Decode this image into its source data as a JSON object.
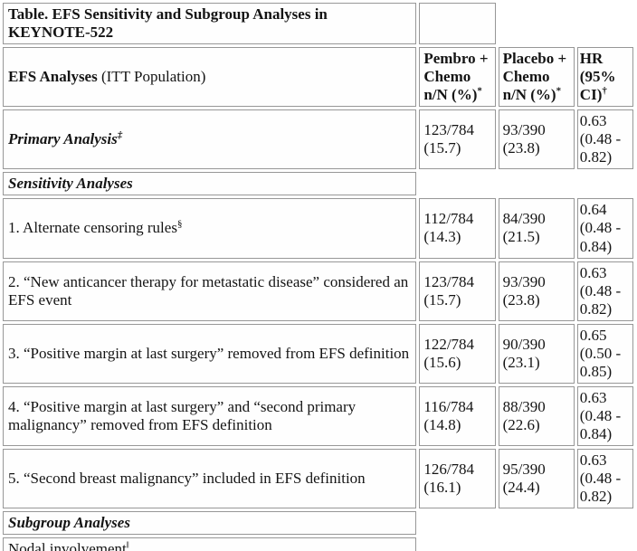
{
  "title": {
    "text": "Table. EFS Sensitivity and Subgroup Analyses in KEYNOTE-522"
  },
  "columns": {
    "analysis_bold": "EFS Analyses",
    "analysis_rest": " (ITT Population)",
    "pembro": "Pembro + Chemo n/N (%)",
    "pembro_sup": "*",
    "placebo": "Placebo + Chemo n/N (%)",
    "placebo_sup": "*",
    "hr": "HR (95% CI)",
    "hr_sup": "†"
  },
  "rows": [
    {
      "label": "Primary Analysis",
      "sup": "‡",
      "pembro": "123/784 (15.7)",
      "placebo": "93/390 (23.8)",
      "hr": "0.63 (0.48 - 0.82)"
    },
    {
      "section": "Sensitivity Analyses"
    },
    {
      "label": "1. Alternate censoring rules",
      "sup": "§",
      "pembro": "112/784 (14.3)",
      "placebo": "84/390 (21.5)",
      "hr": "0.64 (0.48 - 0.84)"
    },
    {
      "label": "2. “New anticancer therapy for metastatic disease” considered an EFS event",
      "pembro": "123/784 (15.7)",
      "placebo": "93/390 (23.8)",
      "hr": "0.63 (0.48 - 0.82)"
    },
    {
      "label": "3. “Positive margin at last surgery” removed from EFS definition",
      "pembro": "122/784 (15.6)",
      "placebo": "90/390 (23.1)",
      "hr": "0.65 (0.50 - 0.85)"
    },
    {
      "label": "4. “Positive margin at last surgery” and “second primary malignancy” removed from EFS definition",
      "pembro": "116/784 (14.8)",
      "placebo": "88/390 (22.6)",
      "hr": "0.63 (0.48 - 0.84)"
    },
    {
      "label": "5. “Second breast malignancy” included in EFS definition",
      "pembro": "126/784 (16.1)",
      "placebo": "95/390 (24.4)",
      "hr": "0.63 (0.48 - 0.82)"
    },
    {
      "section": "Subgroup Analyses"
    },
    {
      "label": "Nodal involvement",
      "sup": "‖"
    }
  ],
  "colors": {
    "cell_border": "#979797",
    "bottom_divider": "#454545",
    "text": "#141414"
  }
}
